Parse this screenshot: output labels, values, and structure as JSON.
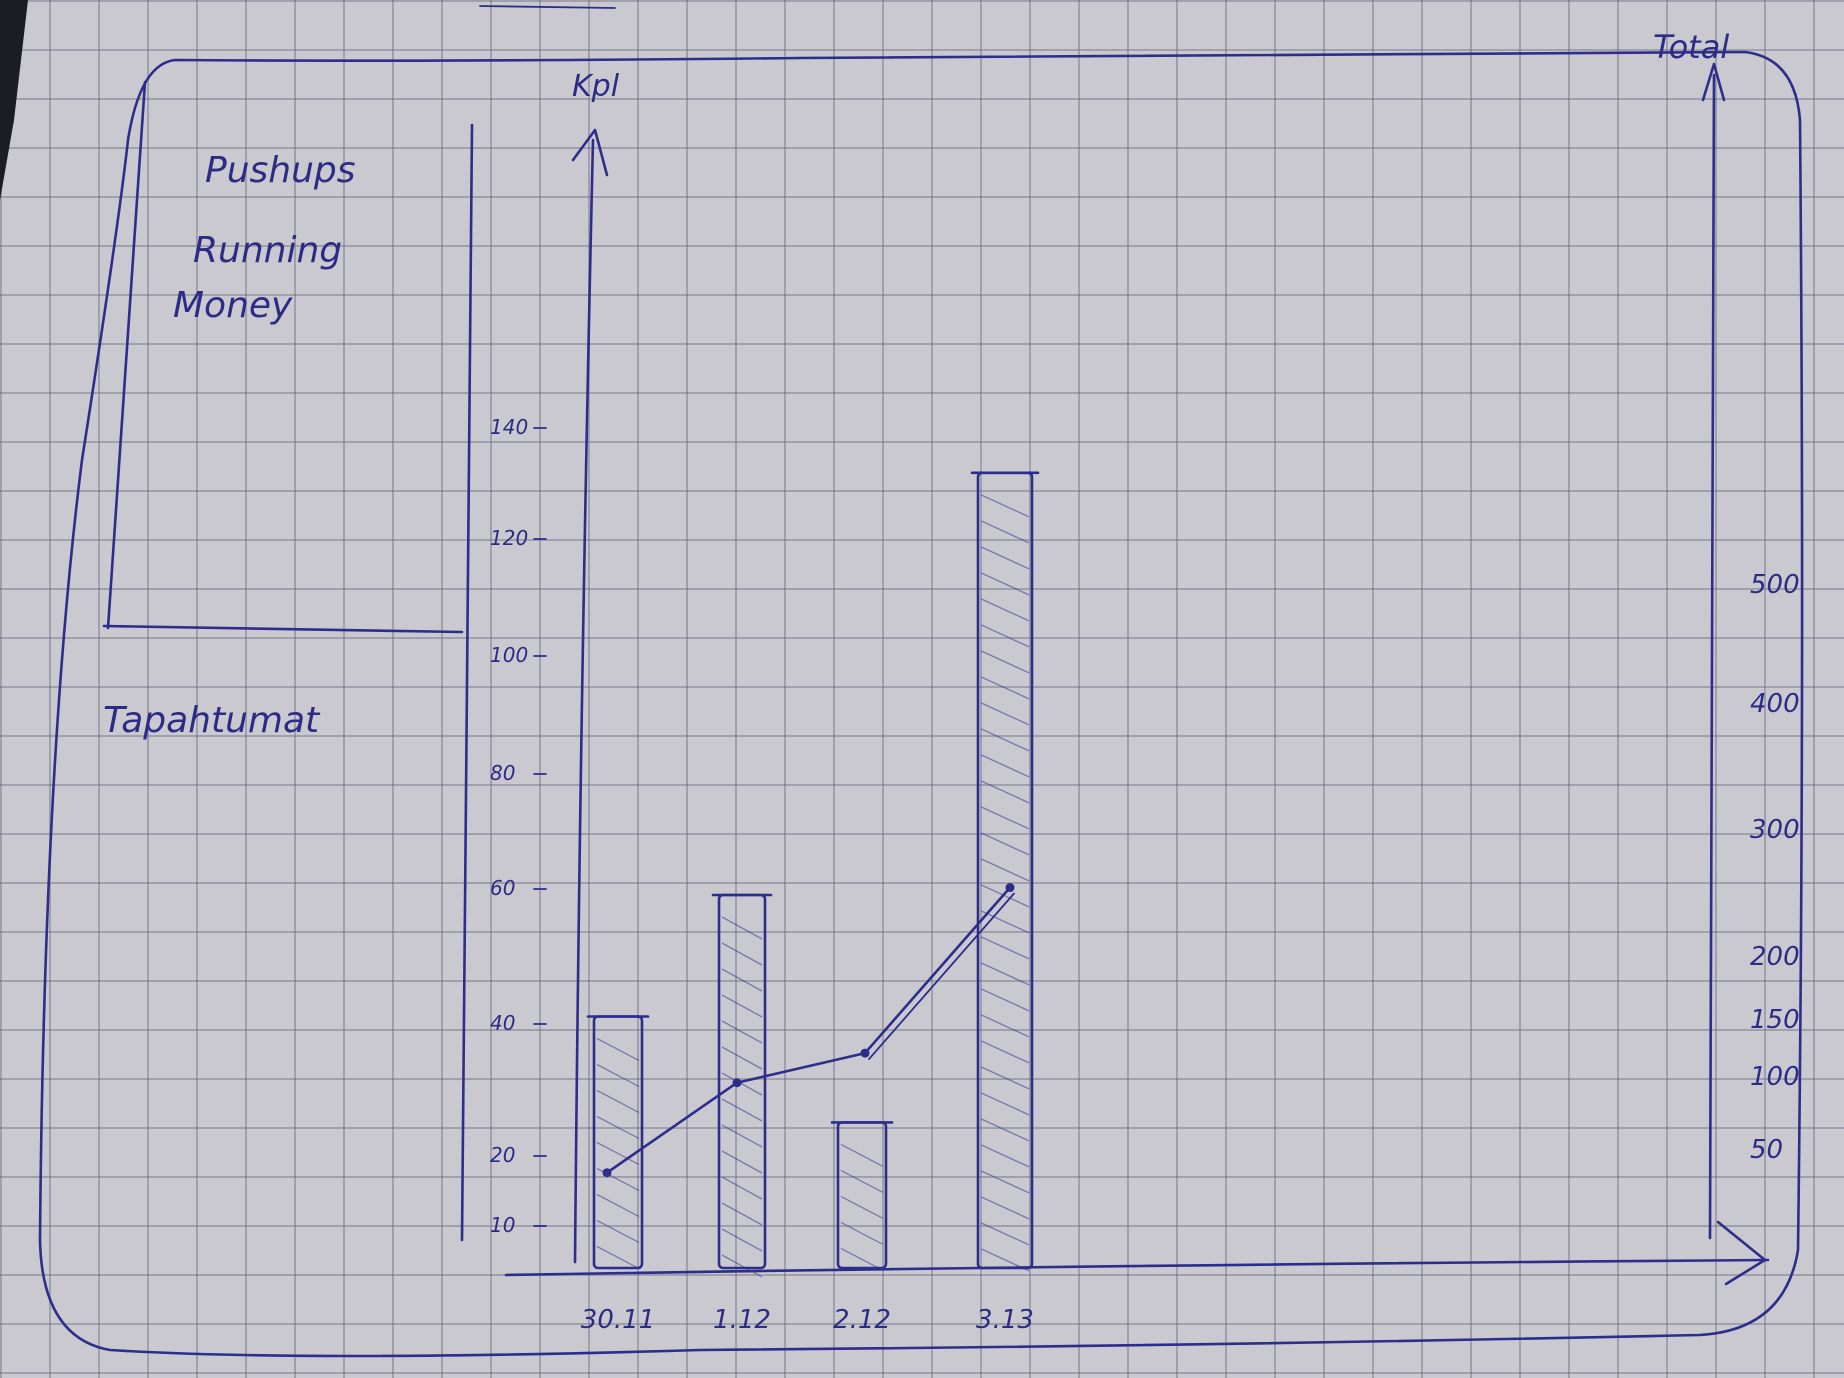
{
  "sidebar": {
    "menu_items": [
      "Pushups",
      "Running",
      "Money"
    ],
    "section_title": "Tapahtumat"
  },
  "chart_data": {
    "type": "bar",
    "categories": [
      "30.11",
      "1.12",
      "2.12",
      "3.13"
    ],
    "series": [
      {
        "name": "Kpl",
        "kind": "bar",
        "axis": "left",
        "values": [
          42,
          60,
          26,
          133
        ]
      },
      {
        "name": "Total",
        "kind": "line",
        "axis": "right",
        "values": [
          42,
          102,
          128,
          261
        ]
      }
    ],
    "left_axis": {
      "label": "Kpl",
      "ticks": [
        10,
        20,
        40,
        60,
        80,
        100,
        120,
        140
      ],
      "tick_labels": [
        "10",
        "20",
        "40",
        "60",
        "80",
        "100",
        "120",
        "140"
      ],
      "ylim": [
        0,
        150
      ]
    },
    "right_axis": {
      "label": "Total",
      "ticks": [
        50,
        100,
        150,
        200,
        300,
        400,
        500
      ],
      "tick_labels": [
        "50",
        "100",
        "150",
        "200",
        "300",
        "400",
        "500"
      ]
    },
    "grid": false,
    "legend": "none"
  },
  "colors": {
    "ink": "#2d2d8c",
    "paper": "#c9c9cf",
    "grid": "#5f6278"
  }
}
